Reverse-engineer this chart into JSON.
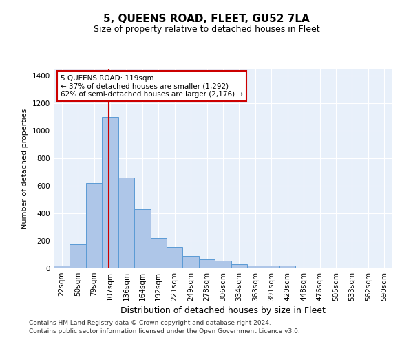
{
  "title": "5, QUEENS ROAD, FLEET, GU52 7LA",
  "subtitle": "Size of property relative to detached houses in Fleet",
  "xlabel": "Distribution of detached houses by size in Fleet",
  "ylabel": "Number of detached properties",
  "bin_labels": [
    "22sqm",
    "50sqm",
    "79sqm",
    "107sqm",
    "136sqm",
    "164sqm",
    "192sqm",
    "221sqm",
    "249sqm",
    "278sqm",
    "306sqm",
    "334sqm",
    "363sqm",
    "391sqm",
    "420sqm",
    "448sqm",
    "476sqm",
    "505sqm",
    "533sqm",
    "562sqm",
    "590sqm"
  ],
  "bar_heights": [
    20,
    175,
    620,
    1100,
    660,
    430,
    220,
    155,
    90,
    65,
    55,
    30,
    20,
    20,
    20,
    5,
    2,
    1,
    0,
    0,
    0
  ],
  "bar_color": "#aec6e8",
  "bar_edge_color": "#5b9bd5",
  "background_color": "#e8f0fa",
  "grid_color": "#ffffff",
  "annotation_text": "5 QUEENS ROAD: 119sqm\n← 37% of detached houses are smaller (1,292)\n62% of semi-detached houses are larger (2,176) →",
  "annotation_box_color": "#ffffff",
  "annotation_box_edge": "#cc0000",
  "ylim": [
    0,
    1450
  ],
  "yticks": [
    0,
    200,
    400,
    600,
    800,
    1000,
    1200,
    1400
  ],
  "footer1": "Contains HM Land Registry data © Crown copyright and database right 2024.",
  "footer2": "Contains public sector information licensed under the Open Government Licence v3.0.",
  "title_fontsize": 11,
  "subtitle_fontsize": 9,
  "ylabel_fontsize": 8,
  "xlabel_fontsize": 9,
  "tick_fontsize": 7.5,
  "footer_fontsize": 6.5
}
